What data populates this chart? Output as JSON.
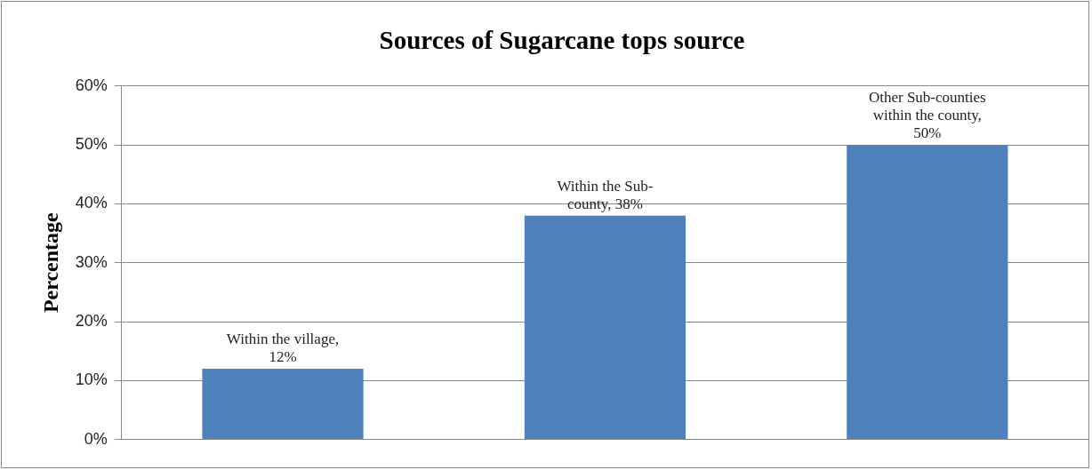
{
  "chart_data": {
    "type": "bar",
    "title": "Sources of Sugarcane tops source",
    "ylabel": "Percentage",
    "categories": [
      null,
      null,
      null
    ],
    "values": [
      12,
      38,
      50
    ],
    "value_labels": [
      "Within the village, 12%",
      "Within the Sub-county, 38%",
      "Other Sub-counties within the county, 50%"
    ],
    "color": "#4f81bd",
    "ylim": [
      0,
      60
    ],
    "yticks": [
      {
        "value": 0,
        "label": "0%"
      },
      {
        "value": 10,
        "label": "10%"
      },
      {
        "value": 20,
        "label": "20%"
      },
      {
        "value": 30,
        "label": "30%"
      },
      {
        "value": 40,
        "label": "40%"
      },
      {
        "value": 50,
        "label": "50%"
      },
      {
        "value": 60,
        "label": "60%"
      }
    ],
    "grid": "y",
    "legend": false
  }
}
